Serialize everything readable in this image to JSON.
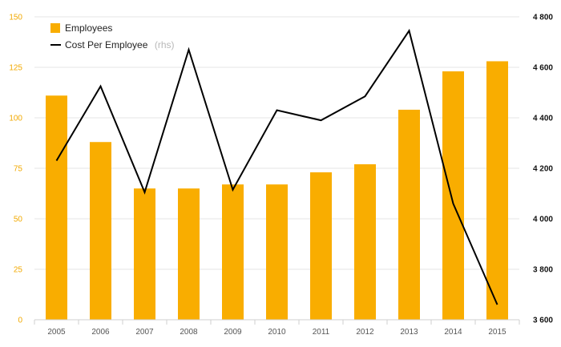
{
  "chart_data": {
    "type": "bar+line",
    "categories": [
      "2005",
      "2006",
      "2007",
      "2008",
      "2009",
      "2010",
      "2011",
      "2012",
      "2013",
      "2014",
      "2015"
    ],
    "series": [
      {
        "name": "Employees",
        "type": "bar",
        "axis": "left",
        "color": "#f9ad00",
        "values": [
          111,
          88,
          65,
          65,
          67,
          67,
          73,
          77,
          104,
          123,
          128
        ]
      },
      {
        "name": "Cost Per Employee",
        "name_suffix": "(rhs)",
        "type": "line",
        "axis": "right",
        "color": "#000000",
        "values": [
          4230,
          4525,
          4105,
          4670,
          4115,
          4430,
          4390,
          4485,
          4745,
          4060,
          3660
        ]
      }
    ],
    "y_left": {
      "min": 0,
      "max": 150,
      "ticks": [
        0,
        25,
        50,
        75,
        100,
        125,
        150
      ],
      "tick_labels": [
        "0",
        "25",
        "50",
        "75",
        "100",
        "125",
        "150"
      ],
      "color": "#f2a900"
    },
    "y_right": {
      "min": 3600,
      "max": 4800,
      "ticks": [
        3600,
        3800,
        4000,
        4200,
        4400,
        4600,
        4800
      ],
      "tick_labels": [
        "3 600",
        "3 800",
        "4 000",
        "4 200",
        "4 400",
        "4 600",
        "4 800"
      ],
      "color": "#111111"
    },
    "grid": true,
    "legend_position": "top-left",
    "title": "",
    "xlabel": "",
    "ylabel": ""
  }
}
